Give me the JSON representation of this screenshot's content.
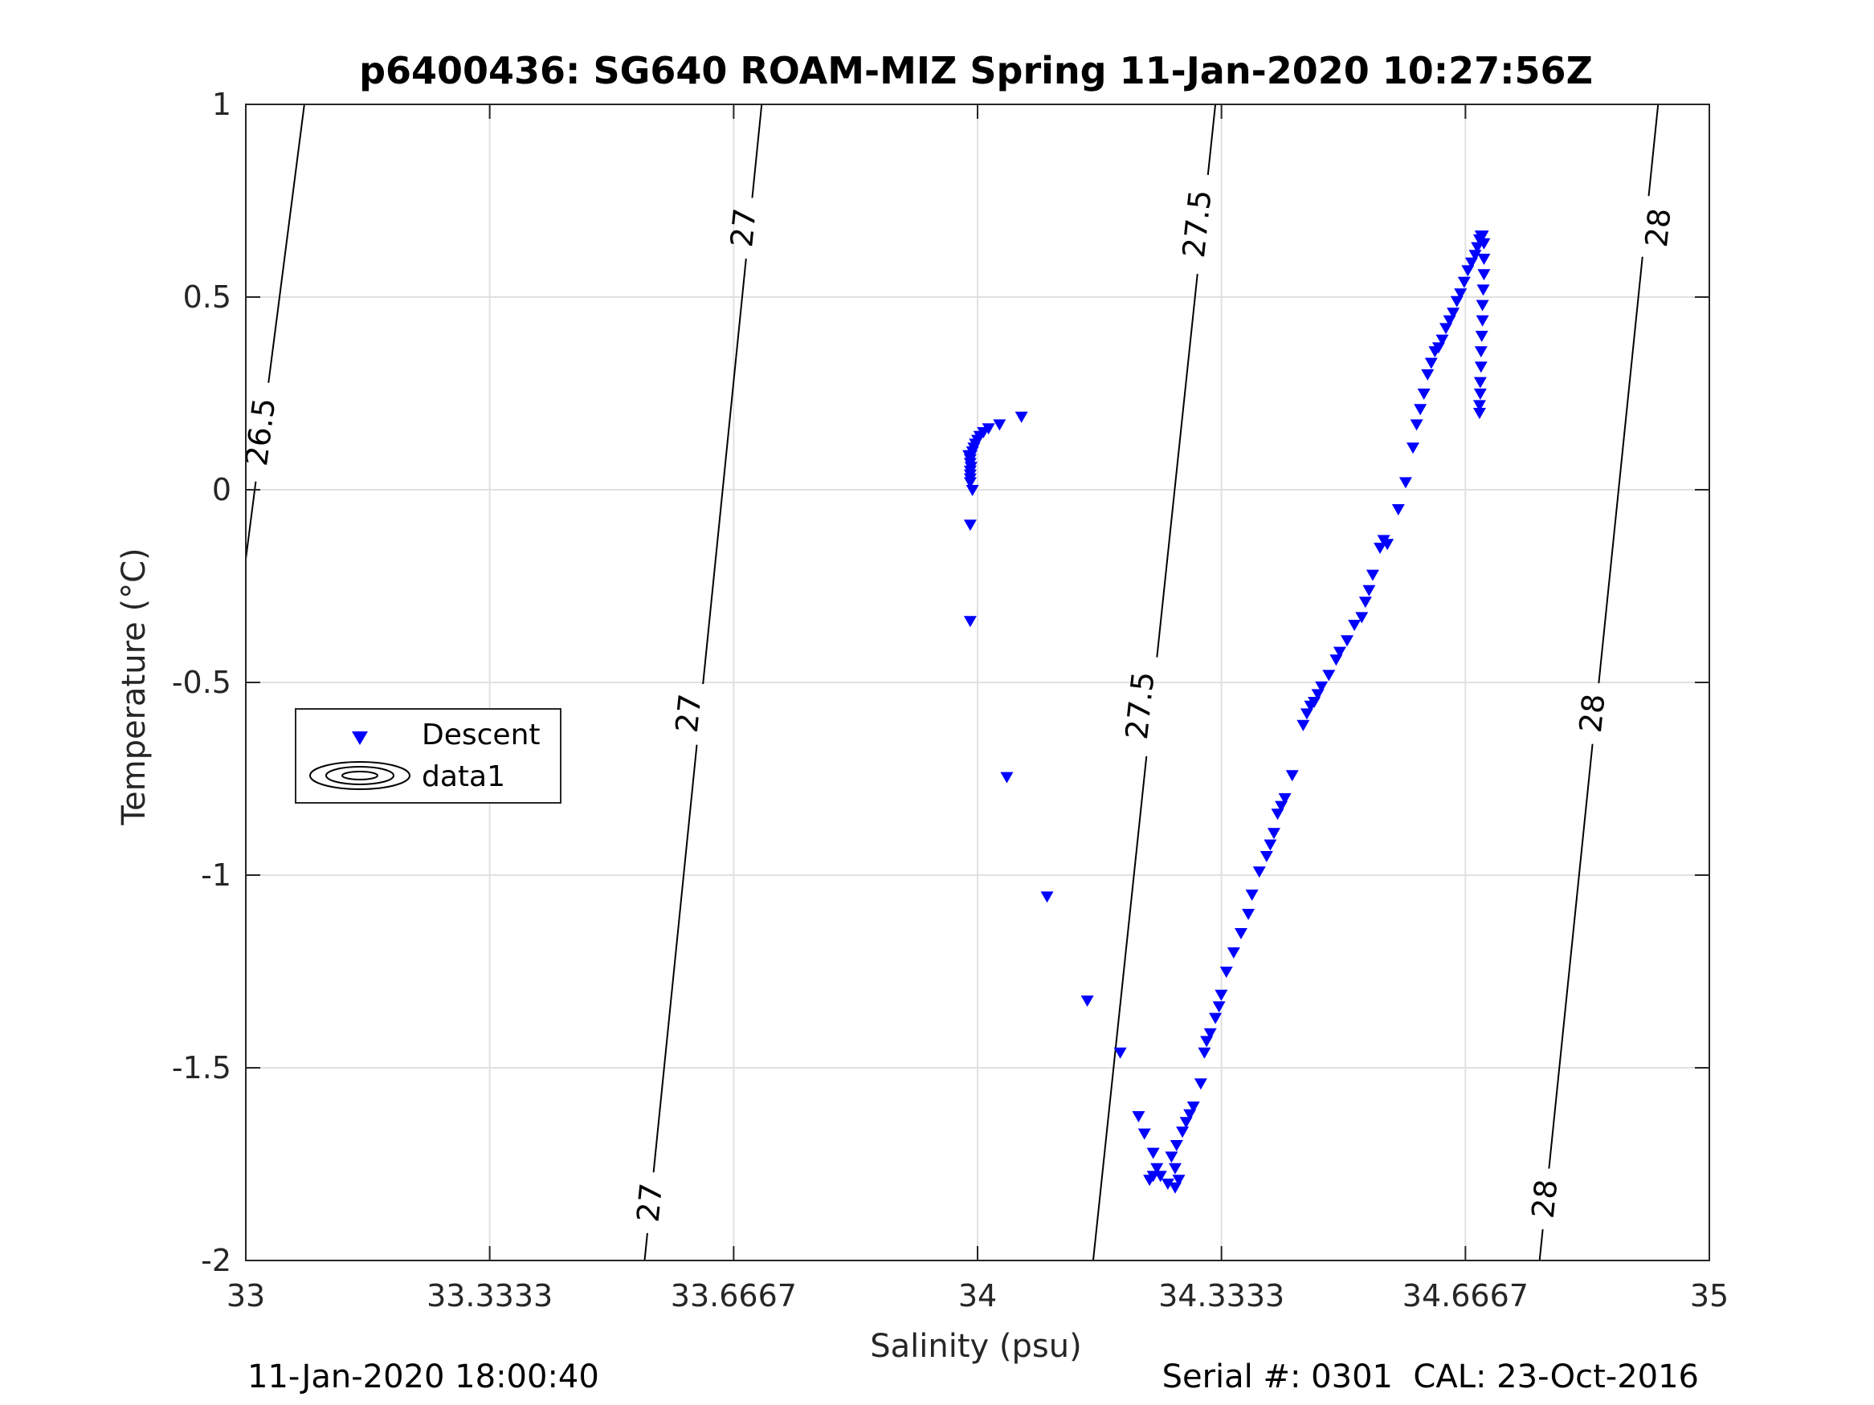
{
  "chart_data": {
    "type": "scatter",
    "title": "p6400436: SG640 ROAM-MIZ Spring 11-Jan-2020 10:27:56Z",
    "xlabel": "Salinity (psu)",
    "ylabel": "Temperature (°C)",
    "xlim": [
      33,
      35
    ],
    "ylim": [
      -2,
      1
    ],
    "x_ticks": [
      33,
      33.3333,
      33.6667,
      34,
      34.3333,
      34.6667,
      35
    ],
    "x_tick_labels": [
      "33",
      "33.3333",
      "33.6667",
      "34",
      "34.3333",
      "34.6667",
      "35"
    ],
    "y_ticks": [
      -2,
      -1.5,
      -1,
      -0.5,
      0,
      0.5,
      1
    ],
    "y_tick_labels": [
      "-2",
      "-1.5",
      "-1",
      "-0.5",
      "0",
      "0.5",
      "1"
    ],
    "grid": true,
    "legend": {
      "placement": "left",
      "entries": [
        "Descent",
        "data1"
      ]
    },
    "series": [
      {
        "name": "Descent",
        "marker": "downward-triangle",
        "color": "#0000ff",
        "points": [
          [
            34.06,
            0.19
          ],
          [
            34.03,
            0.17
          ],
          [
            34.015,
            0.16
          ],
          [
            34.008,
            0.15
          ],
          [
            34.003,
            0.14
          ],
          [
            34.0,
            0.13
          ],
          [
            33.997,
            0.12
          ],
          [
            33.995,
            0.11
          ],
          [
            33.993,
            0.1
          ],
          [
            33.991,
            0.09
          ],
          [
            33.988,
            0.09
          ],
          [
            33.99,
            0.08
          ],
          [
            33.99,
            0.07
          ],
          [
            33.991,
            0.06
          ],
          [
            33.99,
            0.05
          ],
          [
            33.99,
            0.04
          ],
          [
            33.99,
            0.03
          ],
          [
            33.99,
            0.02
          ],
          [
            33.993,
            0.0
          ],
          [
            33.99,
            -0.09
          ],
          [
            33.99,
            -0.34
          ],
          [
            34.04,
            -0.745
          ],
          [
            34.095,
            -1.055
          ],
          [
            34.15,
            -1.325
          ],
          [
            34.195,
            -1.46
          ],
          [
            34.22,
            -1.625
          ],
          [
            34.228,
            -1.67
          ],
          [
            34.24,
            -1.72
          ],
          [
            34.245,
            -1.76
          ],
          [
            34.24,
            -1.78
          ],
          [
            34.235,
            -1.79
          ],
          [
            34.25,
            -1.78
          ],
          [
            34.26,
            -1.8
          ],
          [
            34.27,
            -1.81
          ],
          [
            34.275,
            -1.79
          ],
          [
            34.27,
            -1.76
          ],
          [
            34.265,
            -1.73
          ],
          [
            34.272,
            -1.7
          ],
          [
            34.28,
            -1.665
          ],
          [
            34.285,
            -1.64
          ],
          [
            34.29,
            -1.62
          ],
          [
            34.295,
            -1.6
          ],
          [
            34.305,
            -1.54
          ],
          [
            34.31,
            -1.46
          ],
          [
            34.313,
            -1.43
          ],
          [
            34.318,
            -1.41
          ],
          [
            34.325,
            -1.37
          ],
          [
            34.33,
            -1.34
          ],
          [
            34.333,
            -1.31
          ],
          [
            34.34,
            -1.25
          ],
          [
            34.35,
            -1.2
          ],
          [
            34.36,
            -1.15
          ],
          [
            34.37,
            -1.1
          ],
          [
            34.375,
            -1.05
          ],
          [
            34.385,
            -0.99
          ],
          [
            34.395,
            -0.95
          ],
          [
            34.4,
            -0.92
          ],
          [
            34.405,
            -0.89
          ],
          [
            34.41,
            -0.84
          ],
          [
            34.415,
            -0.82
          ],
          [
            34.42,
            -0.8
          ],
          [
            34.43,
            -0.74
          ],
          [
            34.445,
            -0.61
          ],
          [
            34.45,
            -0.58
          ],
          [
            34.455,
            -0.56
          ],
          [
            34.46,
            -0.55
          ],
          [
            34.465,
            -0.53
          ],
          [
            34.47,
            -0.51
          ],
          [
            34.48,
            -0.48
          ],
          [
            34.49,
            -0.44
          ],
          [
            34.495,
            -0.42
          ],
          [
            34.505,
            -0.39
          ],
          [
            34.515,
            -0.35
          ],
          [
            34.525,
            -0.33
          ],
          [
            34.53,
            -0.29
          ],
          [
            34.535,
            -0.26
          ],
          [
            34.54,
            -0.22
          ],
          [
            34.55,
            -0.15
          ],
          [
            34.555,
            -0.13
          ],
          [
            34.56,
            -0.14
          ],
          [
            34.575,
            -0.05
          ],
          [
            34.585,
            0.02
          ],
          [
            34.595,
            0.11
          ],
          [
            34.6,
            0.17
          ],
          [
            34.605,
            0.21
          ],
          [
            34.61,
            0.25
          ],
          [
            34.615,
            0.3
          ],
          [
            34.62,
            0.33
          ],
          [
            34.625,
            0.36
          ],
          [
            34.63,
            0.37
          ],
          [
            34.635,
            0.39
          ],
          [
            34.64,
            0.42
          ],
          [
            34.645,
            0.44
          ],
          [
            34.65,
            0.46
          ],
          [
            34.655,
            0.49
          ],
          [
            34.66,
            0.51
          ],
          [
            34.665,
            0.54
          ],
          [
            34.67,
            0.57
          ],
          [
            34.675,
            0.59
          ],
          [
            34.68,
            0.61
          ],
          [
            34.683,
            0.63
          ],
          [
            34.686,
            0.65
          ],
          [
            34.688,
            0.66
          ],
          [
            34.69,
            0.66
          ],
          [
            34.692,
            0.64
          ],
          [
            34.692,
            0.6
          ],
          [
            34.692,
            0.56
          ],
          [
            34.691,
            0.52
          ],
          [
            34.69,
            0.48
          ],
          [
            34.69,
            0.44
          ],
          [
            34.689,
            0.4
          ],
          [
            34.688,
            0.36
          ],
          [
            34.688,
            0.32
          ],
          [
            34.687,
            0.28
          ],
          [
            34.687,
            0.25
          ],
          [
            34.686,
            0.22
          ],
          [
            34.686,
            0.2
          ]
        ]
      },
      {
        "name": "data1",
        "type": "contour",
        "color": "#000000",
        "levels": [
          {
            "value": 26.5,
            "path": [
              [
                33.0,
                -0.18
              ],
              [
                33.08,
                1.0
              ]
            ],
            "labels": [
              [
                33.02,
                0.15
              ]
            ]
          },
          {
            "value": 27,
            "path": [
              [
                33.545,
                -2.0
              ],
              [
                33.705,
                1.0
              ]
            ],
            "labels": [
              [
                33.552,
                -1.85
              ],
              [
                33.605,
                -0.58
              ],
              [
                33.68,
                0.68
              ]
            ]
          },
          {
            "value": 27.5,
            "path": [
              [
                34.158,
                -2.0
              ],
              [
                34.325,
                1.0
              ]
            ],
            "labels": [
              [
                34.222,
                -0.56
              ],
              [
                34.3,
                0.69
              ]
            ]
          },
          {
            "value": 28,
            "path": [
              [
                34.768,
                -2.0
              ],
              [
                34.93,
                1.0
              ]
            ],
            "labels": [
              [
                34.775,
                -1.84
              ],
              [
                34.84,
                -0.58
              ],
              [
                34.93,
                0.68
              ]
            ]
          }
        ]
      }
    ],
    "footer_left": "11-Jan-2020 18:00:40",
    "footer_right": "Serial #: 0301  CAL: 23-Oct-2016"
  }
}
